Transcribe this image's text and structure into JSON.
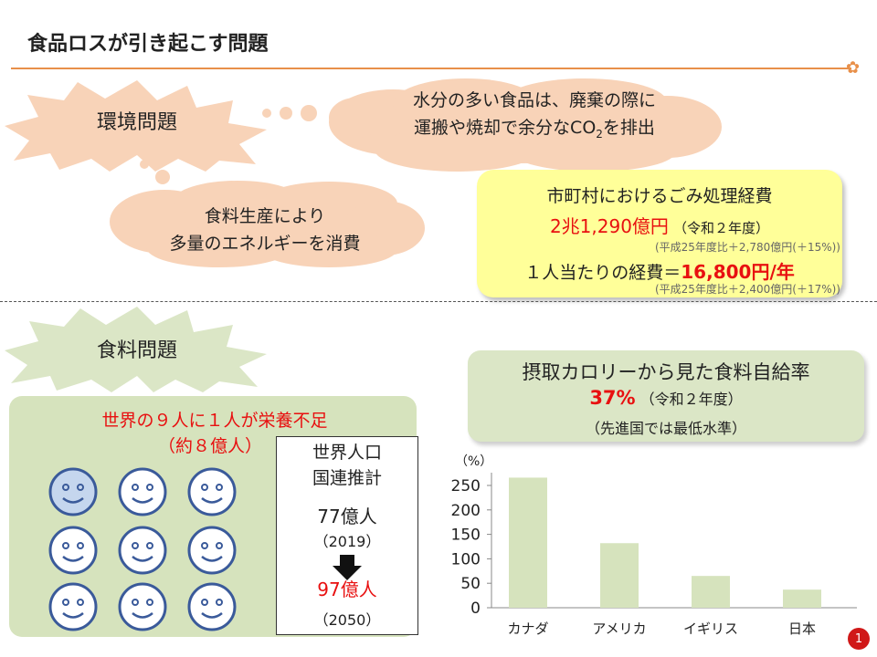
{
  "header": {
    "title": "食品ロスが引き起こす問題"
  },
  "env": {
    "badge": "環境問題",
    "cloud1_line1": "水分の多い食品は、廃棄の際に",
    "cloud1_line2_pre": "運搬や焼却で余分なCO",
    "cloud1_sub": "2",
    "cloud1_line2_post": "を排出",
    "cloud2_line1": "食料生産により",
    "cloud2_line2": "多量のエネルギーを消費"
  },
  "cost": {
    "title": "市町村におけるごみ処理経費",
    "amount": "2兆1,290億円",
    "amount_note": "（令和２年度）",
    "note1": "(平成25年度比＋2,780億円(＋15%))",
    "per_label": "１人当たりの経費＝",
    "per_value": "16,800円/年",
    "note2": "(平成25年度比＋2,400億円(＋17%))"
  },
  "food": {
    "badge": "食料問題",
    "calorie_title": "摂取カロリーから見た食料自給率",
    "calorie_value": "37%",
    "calorie_year": "（令和２年度）",
    "calorie_note": "（先進国では最低水準）",
    "hunger_line1": "世界の９人に１人が栄養不足",
    "hunger_line2": "（約８億人）",
    "pop_title1": "世界人口",
    "pop_title2": "国連推計",
    "pop_2019": "77億人",
    "pop_2019_year": "（2019）",
    "pop_2050": "97億人",
    "pop_2050_year": "（2050）"
  },
  "chart_data": {
    "type": "bar",
    "categories": [
      "カナダ",
      "アメリカ",
      "イギリス",
      "日本"
    ],
    "values": [
      266,
      132,
      65,
      37
    ],
    "ylabel": "（%）",
    "ylim": [
      0,
      250
    ],
    "yticks": [
      "250",
      "200",
      "150",
      "100",
      "50",
      "0"
    ],
    "bar_color": "#d6e3bd",
    "grid": false
  },
  "page_number": "1"
}
